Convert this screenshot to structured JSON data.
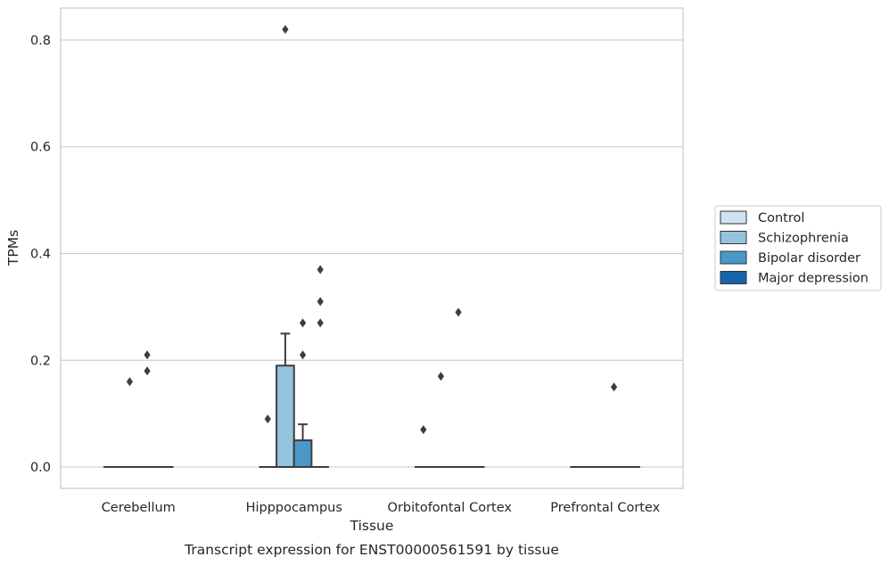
{
  "chart_data": {
    "type": "box",
    "xlabel": "Tissue",
    "ylabel": "TPMs",
    "caption": "Transcript expression for ENST00000561591 by tissue",
    "ylim": [
      -0.04,
      0.86
    ],
    "yticks": [
      0.0,
      0.2,
      0.4,
      0.6,
      0.8
    ],
    "ytick_labels": [
      "0.0",
      "0.2",
      "0.4",
      "0.6",
      "0.8"
    ],
    "grid": "horizontal",
    "legend_position": "right",
    "categories": [
      "Cerebellum",
      "Hipppocampus",
      "Orbitofontal Cortex",
      "Prefrontal Cortex"
    ],
    "series": [
      {
        "name": "Control",
        "color": "#d0e1f2",
        "boxes": [
          {
            "q1": 0,
            "median": 0,
            "q3": 0,
            "whislo": 0,
            "whishi": 0,
            "fliers": []
          },
          {
            "q1": 0,
            "median": 0,
            "q3": 0,
            "whislo": 0,
            "whishi": 0,
            "fliers": [
              0.09
            ]
          },
          {
            "q1": 0,
            "median": 0,
            "q3": 0,
            "whislo": 0,
            "whishi": 0,
            "fliers": [
              0.07
            ]
          },
          {
            "q1": 0,
            "median": 0,
            "q3": 0,
            "whislo": 0,
            "whishi": 0,
            "fliers": []
          }
        ]
      },
      {
        "name": "Schizophrenia",
        "color": "#94c4df",
        "boxes": [
          {
            "q1": 0,
            "median": 0,
            "q3": 0,
            "whislo": 0,
            "whishi": 0,
            "fliers": [
              0.16
            ]
          },
          {
            "q1": 0,
            "median": 0,
            "q3": 0.19,
            "whislo": 0,
            "whishi": 0.25,
            "fliers": [
              0.82
            ]
          },
          {
            "q1": 0,
            "median": 0,
            "q3": 0,
            "whislo": 0,
            "whishi": 0,
            "fliers": [
              0.17
            ]
          },
          {
            "q1": 0,
            "median": 0,
            "q3": 0,
            "whislo": 0,
            "whishi": 0,
            "fliers": []
          }
        ]
      },
      {
        "name": "Bipolar disorder",
        "color": "#4a98c9",
        "boxes": [
          {
            "q1": 0,
            "median": 0,
            "q3": 0,
            "whislo": 0,
            "whishi": 0,
            "fliers": [
              0.21,
              0.18
            ]
          },
          {
            "q1": 0,
            "median": 0,
            "q3": 0.05,
            "whislo": 0,
            "whishi": 0.08,
            "fliers": [
              0.27,
              0.21
            ]
          },
          {
            "q1": 0,
            "median": 0,
            "q3": 0,
            "whislo": 0,
            "whishi": 0,
            "fliers": [
              0.29
            ]
          },
          {
            "q1": 0,
            "median": 0,
            "q3": 0,
            "whislo": 0,
            "whishi": 0,
            "fliers": [
              0.15
            ]
          }
        ]
      },
      {
        "name": "Major depression",
        "color": "#1764ab",
        "boxes": [
          {
            "q1": 0,
            "median": 0,
            "q3": 0,
            "whislo": 0,
            "whishi": 0,
            "fliers": []
          },
          {
            "q1": 0,
            "median": 0,
            "q3": 0,
            "whislo": 0,
            "whishi": 0,
            "fliers": [
              0.37,
              0.31,
              0.27
            ]
          },
          {
            "q1": 0,
            "median": 0,
            "q3": 0,
            "whislo": 0,
            "whishi": 0,
            "fliers": []
          },
          {
            "q1": 0,
            "median": 0,
            "q3": 0,
            "whislo": 0,
            "whishi": 0,
            "fliers": []
          }
        ]
      }
    ],
    "colors": {
      "grid": "#cccccc",
      "frame": "#cccccc",
      "line": "#3d3d3d",
      "text": "#262626"
    }
  }
}
